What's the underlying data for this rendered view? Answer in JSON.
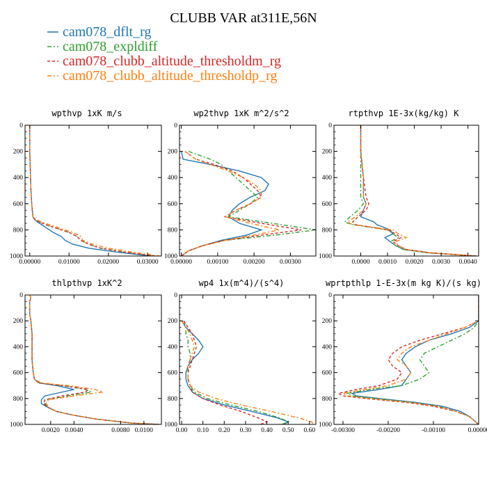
{
  "title": "CLUBB VAR at311E,56N",
  "legend": [
    {
      "label": "cam078_dflt_rg",
      "color": "#1f77b4",
      "dash": "solid"
    },
    {
      "label": "cam078_expldiff",
      "color": "#2ca02c",
      "dash": "dashdot"
    },
    {
      "label": "cam078_clubb_altitude_thresholdm_rg",
      "color": "#d62728",
      "dash": "dash"
    },
    {
      "label": "cam078_clubb_altitude_thresholdp_rg",
      "color": "#ff7f0e",
      "dash": "dashdot"
    }
  ],
  "chart_data": [
    {
      "type": "line",
      "title": "wpthvp  1xK m/s",
      "xlim": [
        -0.0012,
        0.0335
      ],
      "ylim": [
        1000,
        0
      ],
      "xticks": [
        0,
        0.01,
        0.02,
        0.03
      ],
      "xtick_labels": [
        "0.00000",
        "0.01000",
        "0.02000",
        "0.03000"
      ],
      "yticks": [
        0,
        200,
        400,
        600,
        800,
        1000
      ],
      "ytick_labels": [
        "0",
        "200",
        "400",
        "600",
        "800",
        "1000"
      ],
      "y": [
        0,
        100,
        200,
        300,
        400,
        500,
        600,
        700,
        720,
        740,
        760,
        780,
        800,
        820,
        850,
        880,
        910,
        940,
        970,
        1000
      ],
      "series": [
        {
          "name": "cam078_dflt_rg",
          "values": [
            0,
            0,
            0,
            0.0001,
            0.0002,
            0.0003,
            0.0005,
            0.0008,
            0.0012,
            0.002,
            0.003,
            0.004,
            0.005,
            0.006,
            0.008,
            0.009,
            0.011,
            0.015,
            0.022,
            0.031
          ]
        },
        {
          "name": "cam078_expldiff",
          "values": [
            0,
            0,
            0,
            0.0001,
            0.0002,
            0.0003,
            0.0005,
            0.0008,
            0.0013,
            0.0025,
            0.004,
            0.006,
            0.008,
            0.01,
            0.012,
            0.013,
            0.015,
            0.018,
            0.024,
            0.032
          ]
        },
        {
          "name": "cam078_clubb_altitude_thresholdm_rg",
          "values": [
            0,
            0,
            0,
            0.0001,
            0.0002,
            0.0003,
            0.0005,
            0.0008,
            0.0013,
            0.0025,
            0.004,
            0.006,
            0.008,
            0.01,
            0.012,
            0.013,
            0.015,
            0.018,
            0.024,
            0.032
          ]
        },
        {
          "name": "cam078_clubb_altitude_thresholdp_rg",
          "values": [
            0,
            0,
            0,
            0.0001,
            0.0002,
            0.0003,
            0.0005,
            0.0008,
            0.0015,
            0.003,
            0.005,
            0.007,
            0.009,
            0.011,
            0.013,
            0.0135,
            0.016,
            0.02,
            0.026,
            0.033
          ]
        }
      ]
    },
    {
      "type": "line",
      "title": "wp2thvp  1xK m^2/s^2",
      "xlim": [
        -5e-05,
        0.0037
      ],
      "ylim": [
        1000,
        0
      ],
      "xticks": [
        0,
        0.001,
        0.002,
        0.003
      ],
      "xtick_labels": [
        "0.00000",
        "0.00100",
        "0.00200",
        "0.00300"
      ],
      "yticks": [
        0,
        200,
        400,
        600,
        800,
        1000
      ],
      "ytick_labels": [
        "0",
        "200",
        "400",
        "600",
        "800",
        "1000"
      ],
      "y": [
        200,
        260,
        300,
        350,
        400,
        450,
        500,
        550,
        600,
        650,
        700,
        750,
        800,
        840,
        880,
        920,
        960,
        1000
      ],
      "series": [
        {
          "name": "cam078_dflt_rg",
          "values": [
            0,
            5e-05,
            0.0008,
            0.0016,
            0.0022,
            0.0024,
            0.0023,
            0.0019,
            0.0016,
            0.0014,
            0.0013,
            0.0016,
            0.0022,
            0.0018,
            0.0011,
            0.0006,
            0.0002,
            0
          ]
        },
        {
          "name": "cam078_expldiff",
          "values": [
            0.0002,
            0.0008,
            0.0011,
            0.0013,
            0.0015,
            0.0017,
            0.0019,
            0.0021,
            0.0019,
            0.0016,
            0.0013,
            0.0025,
            0.0037,
            0.0026,
            0.0012,
            0.0006,
            0.0002,
            0
          ]
        },
        {
          "name": "cam078_clubb_altitude_thresholdm_rg",
          "values": [
            0.0001,
            0.0004,
            0.0009,
            0.0014,
            0.0017,
            0.0019,
            0.0021,
            0.0022,
            0.0019,
            0.0015,
            0.0012,
            0.0022,
            0.0033,
            0.0022,
            0.0012,
            0.0006,
            0.0002,
            0
          ]
        },
        {
          "name": "cam078_clubb_altitude_thresholdp_rg",
          "values": [
            0.0001,
            0.0004,
            0.0008,
            0.0013,
            0.0017,
            0.002,
            0.0022,
            0.0022,
            0.0019,
            0.0015,
            0.0012,
            0.0019,
            0.0027,
            0.002,
            0.0012,
            0.0006,
            0.0002,
            0
          ]
        }
      ]
    },
    {
      "type": "line",
      "title": "rtpthvp  1E-3x(kg/kg) K",
      "xlim": [
        -0.001,
        0.0044
      ],
      "ylim": [
        1000,
        0
      ],
      "xticks": [
        0,
        0.001,
        0.002,
        0.003,
        0.004
      ],
      "xtick_labels": [
        "0.0000",
        "0.0010",
        "0.0020",
        "0.0030",
        "0.0040"
      ],
      "yticks": [
        0,
        200,
        400,
        600,
        800,
        1000
      ],
      "ytick_labels": [
        "0",
        "200",
        "400",
        "600",
        "800",
        "1000"
      ],
      "y": [
        0,
        200,
        400,
        550,
        600,
        650,
        700,
        740,
        760,
        800,
        830,
        860,
        890,
        920,
        950,
        975,
        1000
      ],
      "series": [
        {
          "name": "cam078_dflt_rg",
          "values": [
            0,
            0,
            0.0001,
            0.0001,
            0.0002,
            0.0001,
            0,
            0.0005,
            0.0006,
            0.0011,
            0.0012,
            0.0009,
            0.0011,
            0.0013,
            0.0016,
            0.0025,
            0.0043
          ]
        },
        {
          "name": "cam078_expldiff",
          "values": [
            0,
            0,
            0,
            0,
            0.0001,
            -0.0001,
            -0.0004,
            -0.0006,
            -0.0003,
            0.001,
            0.0012,
            0.0014,
            0.0011,
            0.0013,
            0.0016,
            0.0025,
            0.0043
          ]
        },
        {
          "name": "cam078_clubb_altitude_thresholdm_rg",
          "values": [
            0,
            0,
            0.0001,
            0.0002,
            0.0003,
            0.0002,
            -0.0001,
            -0.0003,
            -0.0002,
            0.001,
            0.0013,
            0.0015,
            0.0012,
            0.0014,
            0.0017,
            0.0026,
            0.0043
          ]
        },
        {
          "name": "cam078_clubb_altitude_thresholdp_rg",
          "values": [
            0,
            0,
            0.0001,
            0.0001,
            0.0002,
            0.0001,
            -0.0002,
            -0.0005,
            -0.0003,
            0.0012,
            0.0014,
            0.0017,
            0.0013,
            0.0014,
            0.0017,
            0.0026,
            0.0043
          ]
        }
      ]
    },
    {
      "type": "line",
      "title": "thlpthvp  1xK^2",
      "xlim": [
        -0.0002,
        0.0115
      ],
      "ylim": [
        1000,
        0
      ],
      "xticks": [
        0.002,
        0.004,
        0.008,
        0.01
      ],
      "xtick_labels": [
        "0.0020",
        "0.0040",
        "0.0080",
        "0.0100"
      ],
      "yticks": [
        0,
        200,
        400,
        600,
        800,
        1000
      ],
      "ytick_labels": [
        "0",
        "200",
        "400",
        "600",
        "800",
        "1000"
      ],
      "y": [
        0,
        20,
        50,
        100,
        150,
        200,
        300,
        400,
        500,
        600,
        650,
        680,
        700,
        730,
        750,
        780,
        810,
        840,
        870,
        900,
        930,
        960,
        990,
        1000
      ],
      "series": [
        {
          "name": "cam078_dflt_rg",
          "values": [
            0.0002,
            0.0003,
            0.0002,
            0.0002,
            0.0002,
            0.0003,
            0.0004,
            0.0004,
            0.0004,
            0.0005,
            0.0006,
            0.001,
            0.0025,
            0.004,
            0.003,
            0.0015,
            0.0012,
            0.0012,
            0.0018,
            0.0025,
            0.004,
            0.006,
            0.009,
            0.0113
          ]
        },
        {
          "name": "cam078_expldiff",
          "values": [
            0.0002,
            0.0003,
            0.0002,
            0.0002,
            0.0002,
            0.0003,
            0.0004,
            0.0004,
            0.0004,
            0.0005,
            0.0006,
            0.001,
            0.003,
            0.005,
            0.0055,
            0.0035,
            0.0015,
            0.0015,
            0.0018,
            0.0025,
            0.004,
            0.006,
            0.009,
            0.0113
          ]
        },
        {
          "name": "cam078_clubb_altitude_thresholdm_rg",
          "values": [
            0.0002,
            0.0003,
            0.0002,
            0.0002,
            0.0002,
            0.0003,
            0.0004,
            0.0004,
            0.0004,
            0.0005,
            0.0006,
            0.001,
            0.003,
            0.0052,
            0.005,
            0.003,
            0.0015,
            0.0014,
            0.0018,
            0.0025,
            0.004,
            0.006,
            0.009,
            0.0113
          ]
        },
        {
          "name": "cam078_clubb_altitude_thresholdp_rg",
          "values": [
            0.0002,
            0.0003,
            0.0002,
            0.0002,
            0.0002,
            0.0003,
            0.0004,
            0.0004,
            0.0004,
            0.0005,
            0.0006,
            0.0012,
            0.0035,
            0.0058,
            0.0065,
            0.004,
            0.0018,
            0.0016,
            0.0019,
            0.0025,
            0.004,
            0.006,
            0.009,
            0.0113
          ]
        }
      ]
    },
    {
      "type": "line",
      "title": "wp4  1x(m^4)/(s^4)",
      "xlim": [
        -0.01,
        0.63
      ],
      "ylim": [
        1000,
        0
      ],
      "xticks": [
        0,
        0.1,
        0.2,
        0.3,
        0.4,
        0.5,
        0.6
      ],
      "xtick_labels": [
        "0.00",
        "0.10",
        "0.20",
        "0.30",
        "0.40",
        "0.50",
        "0.60"
      ],
      "yticks": [
        0,
        200,
        400,
        600,
        800,
        1000
      ],
      "ytick_labels": [
        "0",
        "200",
        "400",
        "600",
        "800",
        "1000"
      ],
      "y": [
        200,
        250,
        300,
        350,
        400,
        450,
        500,
        550,
        600,
        650,
        700,
        750,
        800,
        850,
        900,
        950,
        980,
        1000
      ],
      "series": [
        {
          "name": "cam078_dflt_rg",
          "values": [
            0,
            0.02,
            0.05,
            0.08,
            0.1,
            0.08,
            0.05,
            0.03,
            0.02,
            0.02,
            0.03,
            0.05,
            0.1,
            0.2,
            0.33,
            0.45,
            0.5,
            0.48
          ]
        },
        {
          "name": "cam078_expldiff",
          "values": [
            0.01,
            0.02,
            0.02,
            0.03,
            0.03,
            0.04,
            0.04,
            0.03,
            0.03,
            0.03,
            0.04,
            0.06,
            0.12,
            0.23,
            0.36,
            0.46,
            0.5,
            0.47
          ]
        },
        {
          "name": "cam078_clubb_altitude_thresholdm_rg",
          "values": [
            0.01,
            0.03,
            0.05,
            0.06,
            0.07,
            0.06,
            0.05,
            0.04,
            0.03,
            0.03,
            0.04,
            0.05,
            0.1,
            0.18,
            0.28,
            0.36,
            0.4,
            0.37
          ]
        },
        {
          "name": "cam078_clubb_altitude_thresholdp_rg",
          "values": [
            0,
            0.02,
            0.04,
            0.05,
            0.06,
            0.05,
            0.04,
            0.03,
            0.03,
            0.03,
            0.04,
            0.08,
            0.16,
            0.28,
            0.42,
            0.55,
            0.61,
            0.62
          ]
        }
      ]
    },
    {
      "type": "line",
      "title": "wprtpthlp  1-E-3x(m kg K)/(s kg)",
      "xlim": [
        -0.0032,
        0.0
      ],
      "ylim": [
        1000,
        0
      ],
      "xticks": [
        -0.003,
        -0.002,
        -0.001,
        0
      ],
      "xtick_labels": [
        "-0.00300",
        "-0.00200",
        "-0.00100",
        "0.00000"
      ],
      "yticks": [
        0,
        200,
        400,
        600,
        800,
        1000
      ],
      "ytick_labels": [
        "0",
        "200",
        "400",
        "600",
        "800",
        "1000"
      ],
      "y": [
        0,
        150,
        200,
        250,
        300,
        350,
        400,
        450,
        500,
        550,
        600,
        650,
        700,
        730,
        760,
        780,
        800,
        830,
        860,
        900,
        940,
        970,
        1000
      ],
      "series": [
        {
          "name": "cam078_dflt_rg",
          "values": [
            0,
            0,
            0,
            -0.0002,
            -0.0006,
            -0.0011,
            -0.0014,
            -0.0016,
            -0.0017,
            -0.0016,
            -0.0015,
            -0.0016,
            -0.0017,
            -0.0022,
            -0.0028,
            -0.0027,
            -0.0022,
            -0.0014,
            -0.0008,
            -0.0004,
            -0.0002,
            -0.0001,
            0
          ]
        },
        {
          "name": "cam078_expldiff",
          "values": [
            0,
            0,
            0,
            -0.0001,
            -0.0003,
            -0.0006,
            -0.0009,
            -0.0012,
            -0.0013,
            -0.0012,
            -0.0011,
            -0.0013,
            -0.0017,
            -0.0024,
            -0.0029,
            -0.0028,
            -0.0023,
            -0.0015,
            -0.0009,
            -0.0005,
            -0.0002,
            -0.0001,
            0
          ]
        },
        {
          "name": "cam078_clubb_altitude_thresholdm_rg",
          "values": [
            0,
            0,
            0,
            -0.0003,
            -0.0008,
            -0.0013,
            -0.0017,
            -0.0019,
            -0.002,
            -0.0019,
            -0.0017,
            -0.0018,
            -0.0022,
            -0.0027,
            -0.0031,
            -0.003,
            -0.0025,
            -0.0016,
            -0.001,
            -0.0005,
            -0.0002,
            -0.0001,
            0
          ]
        },
        {
          "name": "cam078_clubb_altitude_thresholdp_rg",
          "values": [
            0,
            0,
            0,
            -0.0003,
            -0.0007,
            -0.0011,
            -0.0015,
            -0.0017,
            -0.0018,
            -0.0016,
            -0.0015,
            -0.0016,
            -0.002,
            -0.0025,
            -0.003,
            -0.0029,
            -0.0024,
            -0.0015,
            -0.0009,
            -0.0005,
            -0.0002,
            -0.0001,
            0
          ]
        }
      ]
    }
  ]
}
